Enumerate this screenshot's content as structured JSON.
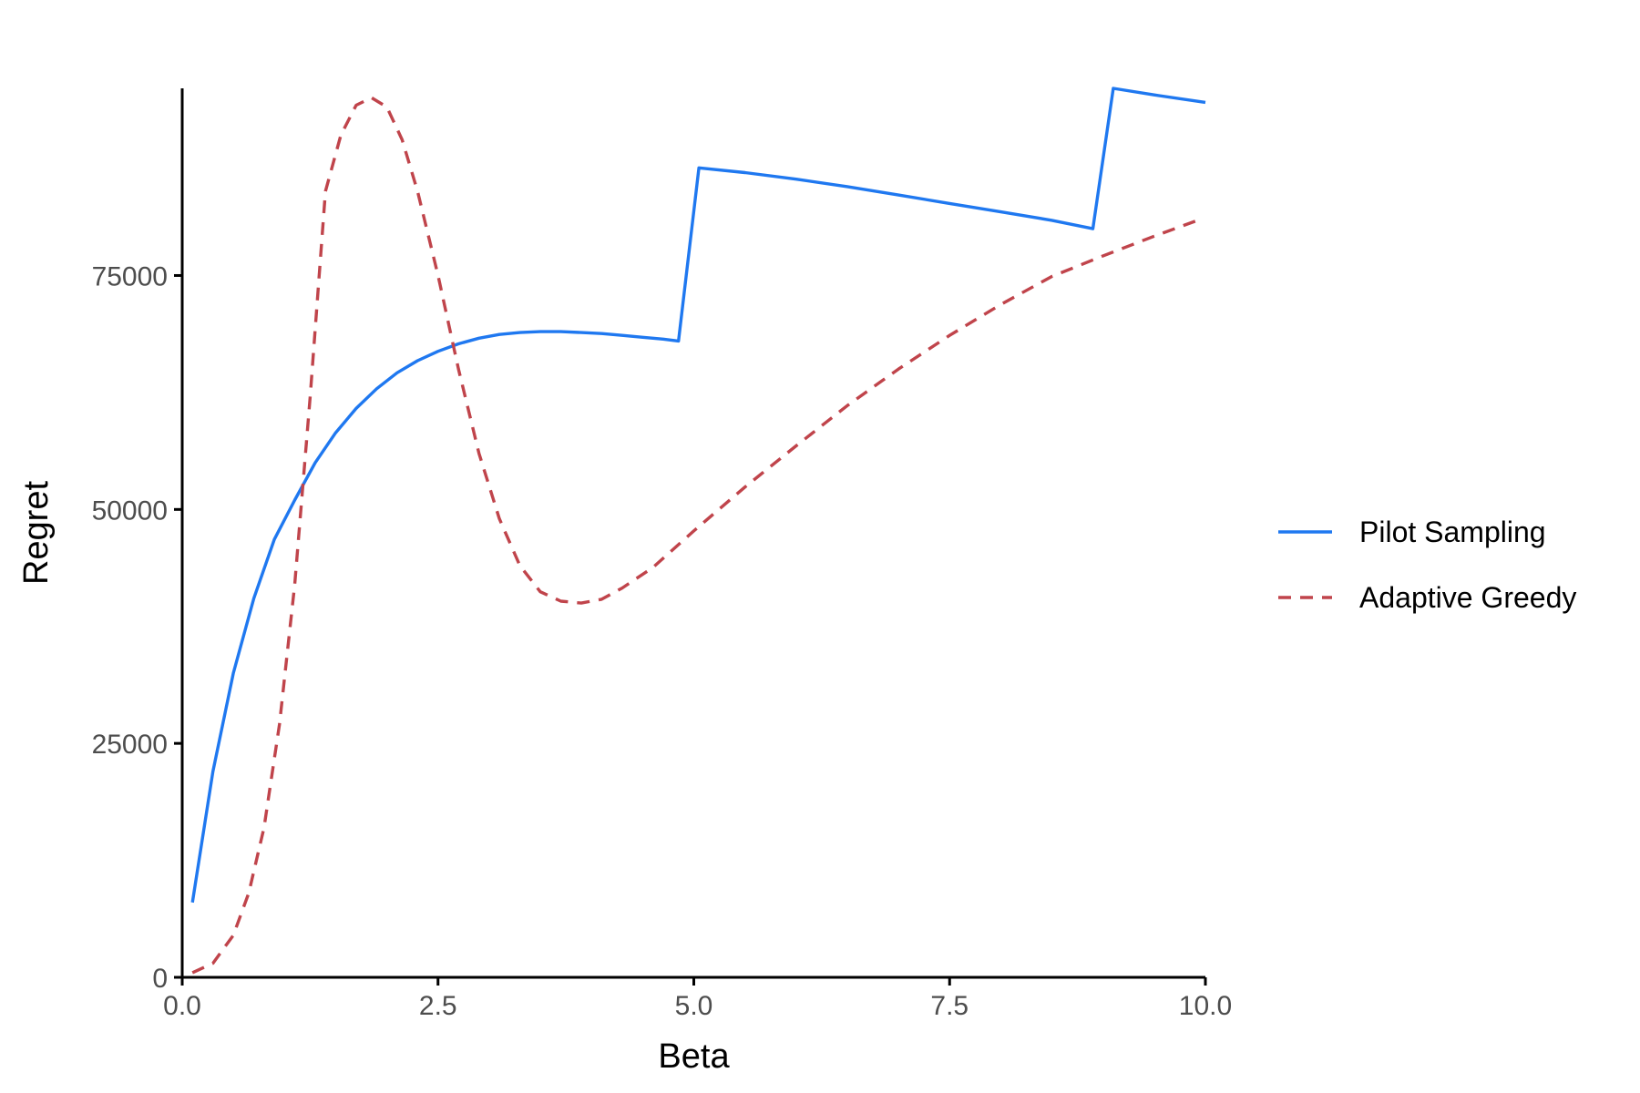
{
  "chart_data": {
    "type": "line",
    "title": "",
    "xlabel": "Beta",
    "ylabel": "Regret",
    "xlim": [
      0,
      10
    ],
    "ylim": [
      0,
      95000
    ],
    "x_ticks": [
      0,
      2.5,
      5,
      7.5,
      10
    ],
    "x_tick_labels": [
      "0.0",
      "2.5",
      "5.0",
      "7.5",
      "10.0"
    ],
    "y_ticks": [
      0,
      25000,
      50000,
      75000
    ],
    "y_tick_labels": [
      "0",
      "25000",
      "50000",
      "75000"
    ],
    "grid": false,
    "legend_position": "right",
    "series": [
      {
        "name": "Pilot Sampling",
        "color": "#1f78f0",
        "dash": "solid",
        "points": [
          [
            0.1,
            8000
          ],
          [
            0.3,
            22000
          ],
          [
            0.5,
            32500
          ],
          [
            0.7,
            40500
          ],
          [
            0.9,
            46800
          ],
          [
            1.1,
            51000
          ],
          [
            1.3,
            55000
          ],
          [
            1.5,
            58200
          ],
          [
            1.7,
            60800
          ],
          [
            1.9,
            62900
          ],
          [
            2.1,
            64600
          ],
          [
            2.3,
            65900
          ],
          [
            2.5,
            66900
          ],
          [
            2.7,
            67700
          ],
          [
            2.9,
            68300
          ],
          [
            3.1,
            68700
          ],
          [
            3.3,
            68900
          ],
          [
            3.5,
            69000
          ],
          [
            3.7,
            69000
          ],
          [
            3.9,
            68900
          ],
          [
            4.1,
            68800
          ],
          [
            4.3,
            68600
          ],
          [
            4.5,
            68400
          ],
          [
            4.7,
            68200
          ],
          [
            4.85,
            68000
          ],
          [
            5.05,
            86500
          ],
          [
            5.5,
            86000
          ],
          [
            6.0,
            85300
          ],
          [
            6.5,
            84500
          ],
          [
            7.0,
            83600
          ],
          [
            7.5,
            82700
          ],
          [
            8.0,
            81800
          ],
          [
            8.5,
            80900
          ],
          [
            8.9,
            80000
          ],
          [
            9.1,
            95000
          ],
          [
            9.5,
            94300
          ],
          [
            10.0,
            93500
          ]
        ]
      },
      {
        "name": "Adaptive Greedy",
        "color": "#c0444b",
        "dash": "dashed",
        "points": [
          [
            0.1,
            500
          ],
          [
            0.3,
            1500
          ],
          [
            0.5,
            4500
          ],
          [
            0.65,
            9000
          ],
          [
            0.8,
            16000
          ],
          [
            0.95,
            27000
          ],
          [
            1.1,
            42000
          ],
          [
            1.25,
            62000
          ],
          [
            1.4,
            84000
          ],
          [
            1.55,
            90000
          ],
          [
            1.7,
            93200
          ],
          [
            1.85,
            94000
          ],
          [
            2.0,
            93000
          ],
          [
            2.15,
            89500
          ],
          [
            2.3,
            84000
          ],
          [
            2.5,
            75000
          ],
          [
            2.7,
            65000
          ],
          [
            2.9,
            56000
          ],
          [
            3.1,
            49000
          ],
          [
            3.3,
            44000
          ],
          [
            3.5,
            41200
          ],
          [
            3.7,
            40200
          ],
          [
            3.9,
            40000
          ],
          [
            4.1,
            40400
          ],
          [
            4.3,
            41600
          ],
          [
            4.6,
            43800
          ],
          [
            5.0,
            47700
          ],
          [
            5.5,
            52400
          ],
          [
            6.0,
            56800
          ],
          [
            6.5,
            61100
          ],
          [
            7.0,
            65000
          ],
          [
            7.5,
            68600
          ],
          [
            8.0,
            71900
          ],
          [
            8.5,
            74900
          ],
          [
            9.0,
            77100
          ],
          [
            9.5,
            79200
          ],
          [
            9.9,
            80800
          ]
        ]
      }
    ]
  }
}
